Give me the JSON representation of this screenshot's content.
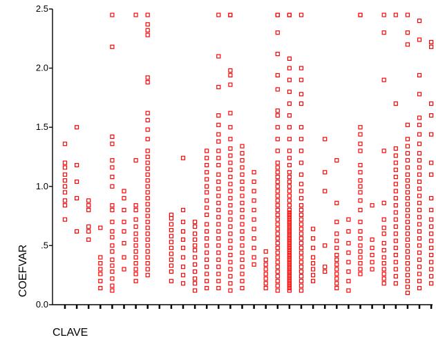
{
  "chart_data": {
    "type": "scatter",
    "xlabel": "CLAVE",
    "ylabel": "COEFVAR",
    "ylim": [
      0,
      2.5
    ],
    "y_ticks": [
      {
        "value": 0,
        "label": "0.0"
      },
      {
        "value": 0.5,
        "label": ".5"
      },
      {
        "value": 1.0,
        "label": "1.0"
      },
      {
        "value": 1.5,
        "label": "1.5"
      },
      {
        "value": 2.0,
        "label": "2.0"
      },
      {
        "value": 2.5,
        "label": "2.5"
      }
    ],
    "x_tick_count": 33,
    "grid": false,
    "marker": "hollow-square",
    "marker_color": "#ff0000",
    "groups": [
      {
        "x": 1,
        "values": [
          0.72,
          0.84,
          0.88,
          0.95,
          1.0,
          1.05,
          1.1,
          1.16,
          1.2,
          1.36
        ]
      },
      {
        "x": 2,
        "values": [
          0.62,
          0.9,
          1.04,
          1.18,
          1.5
        ]
      },
      {
        "x": 3,
        "values": [
          0.55,
          0.62,
          0.66,
          0.8,
          0.84,
          0.88
        ]
      },
      {
        "x": 4,
        "values": [
          0.14,
          0.2,
          0.26,
          0.3,
          0.35,
          0.4,
          0.65
        ]
      },
      {
        "x": 5,
        "values": [
          0.12,
          0.16,
          0.22,
          0.28,
          0.33,
          0.38,
          0.45,
          0.5,
          0.57,
          0.62,
          0.7,
          0.8,
          0.84,
          1.0,
          1.08,
          1.16,
          1.22,
          1.36,
          1.42,
          2.18,
          2.45
        ]
      },
      {
        "x": 6,
        "values": [
          0.3,
          0.4,
          0.52,
          0.62,
          0.7,
          0.8,
          0.9,
          0.96
        ]
      },
      {
        "x": 7,
        "values": [
          0.2,
          0.26,
          0.3,
          0.35,
          0.4,
          0.45,
          0.5,
          0.55,
          0.6,
          0.66,
          0.72,
          0.8,
          0.84,
          1.22,
          2.45
        ]
      },
      {
        "x": 8,
        "values": [
          0.25,
          0.3,
          0.35,
          0.4,
          0.45,
          0.5,
          0.55,
          0.6,
          0.65,
          0.7,
          0.75,
          0.8,
          0.85,
          0.9,
          0.95,
          1.0,
          1.05,
          1.1,
          1.15,
          1.2,
          1.25,
          1.3,
          1.4,
          1.48,
          1.56,
          1.62,
          1.88,
          1.92,
          2.28,
          2.32,
          2.37,
          2.45
        ]
      },
      {
        "x": 10,
        "values": [
          0.2,
          0.28,
          0.33,
          0.38,
          0.43,
          0.48,
          0.53,
          0.58,
          0.63,
          0.68,
          0.73,
          0.76
        ]
      },
      {
        "x": 11,
        "values": [
          0.18,
          0.25,
          0.32,
          0.4,
          0.48,
          0.55,
          0.62,
          0.7,
          0.8,
          1.24
        ]
      },
      {
        "x": 12,
        "values": [
          0.12,
          0.18,
          0.22,
          0.28,
          0.34,
          0.4,
          0.46,
          0.5,
          0.55,
          0.6,
          0.66,
          0.7
        ]
      },
      {
        "x": 13,
        "values": [
          0.14,
          0.2,
          0.26,
          0.32,
          0.38,
          0.44,
          0.5,
          0.56,
          0.62,
          0.68,
          0.76,
          0.82,
          0.88,
          0.95,
          1.0,
          1.06,
          1.12,
          1.18,
          1.24,
          1.3
        ]
      },
      {
        "x": 14,
        "values": [
          0.14,
          0.2,
          0.26,
          0.32,
          0.38,
          0.44,
          0.5,
          0.56,
          0.62,
          0.68,
          0.74,
          0.8,
          0.86,
          0.92,
          0.98,
          1.04,
          1.1,
          1.18,
          1.24,
          1.3,
          1.38,
          1.44,
          1.52,
          1.6,
          1.84,
          2.1,
          2.45
        ]
      },
      {
        "x": 15,
        "values": [
          0.12,
          0.18,
          0.24,
          0.3,
          0.36,
          0.42,
          0.48,
          0.54,
          0.6,
          0.66,
          0.72,
          0.78,
          0.84,
          0.9,
          0.96,
          1.02,
          1.08,
          1.14,
          1.2,
          1.26,
          1.32,
          1.4,
          1.5,
          1.62,
          1.86,
          1.94,
          1.98,
          2.45,
          2.45,
          2.45
        ]
      },
      {
        "x": 16,
        "values": [
          0.14,
          0.2,
          0.26,
          0.32,
          0.38,
          0.44,
          0.5,
          0.56,
          0.62,
          0.68,
          0.74,
          0.8,
          0.86,
          0.92,
          0.98,
          1.04,
          1.1,
          1.16,
          1.22,
          1.28,
          1.34
        ]
      },
      {
        "x": 17,
        "values": [
          0.34,
          0.4,
          0.48,
          0.56,
          0.64,
          0.72,
          0.8,
          0.88,
          0.96,
          1.04,
          1.12
        ]
      },
      {
        "x": 18,
        "values": [
          0.14,
          0.18,
          0.22,
          0.26,
          0.3,
          0.34,
          0.38,
          0.45
        ]
      },
      {
        "x": 19,
        "values": [
          0.12,
          0.16,
          0.2,
          0.24,
          0.28,
          0.32,
          0.36,
          0.4,
          0.44,
          0.48,
          0.52,
          0.56,
          0.6,
          0.64,
          0.68,
          0.72,
          0.76,
          0.8,
          0.84,
          0.88,
          0.92,
          0.96,
          1.0,
          1.04,
          1.08,
          1.12,
          1.16,
          1.2,
          1.3,
          1.4,
          1.5,
          1.6,
          1.64,
          1.82,
          1.94,
          2.12,
          2.3,
          2.45,
          2.45
        ]
      },
      {
        "x": 20,
        "values": [
          0.12,
          0.14,
          0.16,
          0.18,
          0.2,
          0.22,
          0.24,
          0.26,
          0.28,
          0.3,
          0.32,
          0.34,
          0.36,
          0.38,
          0.4,
          0.42,
          0.44,
          0.46,
          0.48,
          0.5,
          0.52,
          0.54,
          0.56,
          0.58,
          0.6,
          0.62,
          0.64,
          0.66,
          0.68,
          0.7,
          0.72,
          0.74,
          0.76,
          0.78,
          0.8,
          0.84,
          0.88,
          0.92,
          0.96,
          1.0,
          1.04,
          1.08,
          1.12,
          1.18,
          1.24,
          1.3,
          1.4,
          1.5,
          1.6,
          1.7,
          1.8,
          1.9,
          2.0,
          2.08,
          2.45,
          2.45,
          2.45
        ]
      },
      {
        "x": 21,
        "values": [
          0.12,
          0.16,
          0.2,
          0.24,
          0.28,
          0.32,
          0.36,
          0.4,
          0.44,
          0.48,
          0.52,
          0.56,
          0.6,
          0.64,
          0.68,
          0.72,
          0.76,
          0.8,
          0.84,
          0.9,
          0.96,
          1.02,
          1.1,
          1.2,
          1.3,
          1.4,
          1.5,
          1.7,
          1.78,
          1.9,
          2.0,
          2.45
        ]
      },
      {
        "x": 22,
        "values": [
          0.2,
          0.25,
          0.3,
          0.35,
          0.4,
          0.48,
          0.56,
          0.64
        ]
      },
      {
        "x": 23,
        "values": [
          0.28,
          0.32,
          0.5,
          0.96,
          1.12,
          1.4
        ]
      },
      {
        "x": 24,
        "values": [
          0.14,
          0.18,
          0.22,
          0.26,
          0.3,
          0.34,
          0.38,
          0.42,
          0.48,
          0.54,
          0.6,
          0.7,
          0.86,
          1.22
        ]
      },
      {
        "x": 25,
        "values": [
          0.12,
          0.2,
          0.28,
          0.36,
          0.44,
          0.52,
          0.62,
          0.72
        ]
      },
      {
        "x": 26,
        "values": [
          0.26,
          0.3,
          0.35,
          0.4,
          0.45,
          0.5,
          0.56,
          0.62,
          0.7,
          0.8,
          0.88,
          0.95,
          1.0,
          1.05,
          1.12,
          1.18,
          1.3,
          1.36,
          1.44,
          1.5,
          2.45,
          2.45
        ]
      },
      {
        "x": 27,
        "values": [
          0.3,
          0.36,
          0.42,
          0.48,
          0.55,
          0.84
        ]
      },
      {
        "x": 28,
        "values": [
          0.18,
          0.22,
          0.26,
          0.3,
          0.35,
          0.4,
          0.46,
          0.52,
          0.6,
          0.65,
          0.72,
          0.86,
          1.3,
          1.9,
          2.3,
          2.45
        ]
      },
      {
        "x": 29,
        "values": [
          0.18,
          0.24,
          0.3,
          0.36,
          0.42,
          0.48,
          0.54,
          0.6,
          0.66,
          0.72,
          0.78,
          0.84,
          0.9,
          0.96,
          1.02,
          1.08,
          1.14,
          1.2,
          1.26,
          1.32,
          1.7,
          2.45
        ]
      },
      {
        "x": 30,
        "values": [
          0.1,
          0.15,
          0.2,
          0.25,
          0.3,
          0.35,
          0.4,
          0.45,
          0.5,
          0.55,
          0.6,
          0.65,
          0.7,
          0.75,
          0.8,
          0.85,
          0.9,
          0.95,
          1.0,
          1.05,
          1.1,
          1.16,
          1.22,
          1.28,
          1.34,
          1.4,
          1.52,
          2.2,
          2.3,
          2.45
        ]
      },
      {
        "x": 31,
        "values": [
          0.14,
          0.2,
          0.26,
          0.32,
          0.38,
          0.44,
          0.5,
          0.56,
          0.62,
          0.68,
          0.74,
          0.8,
          0.86,
          0.92,
          0.98,
          1.04,
          1.1,
          1.16,
          1.22,
          1.28,
          1.36,
          1.44,
          1.52,
          1.58,
          1.78,
          1.94,
          2.24,
          2.4
        ]
      },
      {
        "x": 32,
        "values": [
          0.18,
          0.24,
          0.3,
          0.36,
          0.42,
          0.48,
          0.54,
          0.6,
          0.66,
          0.72,
          0.8,
          0.9,
          1.1,
          1.2,
          1.44,
          1.6,
          1.7,
          2.18,
          2.22
        ]
      }
    ]
  }
}
